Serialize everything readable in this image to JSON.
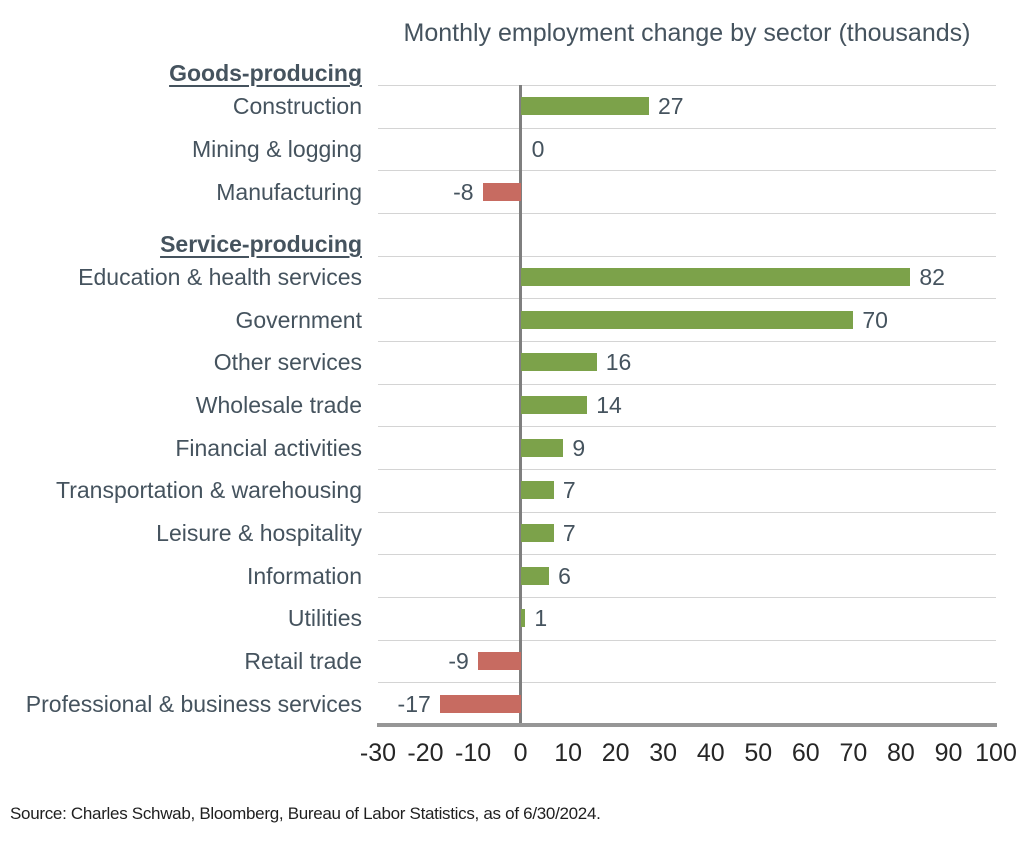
{
  "source_note": "Source: Charles Schwab, Bloomberg, Bureau of Labor Statistics, as of 6/30/2024.",
  "colors": {
    "positive_bar": "#7CA24A",
    "negative_bar": "#C76B61",
    "zero_line": "#7F7F7F",
    "axis_line": "#969696",
    "gridline": "#D4D4D4",
    "label_text": "#45535E",
    "tick_text": "#262626"
  },
  "chart_data": {
    "type": "bar",
    "orientation": "horizontal",
    "title": "Monthly employment change by sector (thousands)",
    "xlabel": "",
    "ylabel": "",
    "xlim": [
      -30,
      100
    ],
    "ticks": [
      -30,
      -20,
      -10,
      0,
      10,
      20,
      30,
      40,
      50,
      60,
      70,
      80,
      90,
      100
    ],
    "grid": "row-separators",
    "legend": "none",
    "rows": [
      {
        "type": "header",
        "label": "Goods-producing"
      },
      {
        "type": "bar",
        "label": "Construction",
        "value": 27
      },
      {
        "type": "bar",
        "label": "Mining & logging",
        "value": 0
      },
      {
        "type": "bar",
        "label": "Manufacturing",
        "value": -8
      },
      {
        "type": "header",
        "label": "Service-producing"
      },
      {
        "type": "bar",
        "label": "Education & health services",
        "value": 82
      },
      {
        "type": "bar",
        "label": "Government",
        "value": 70
      },
      {
        "type": "bar",
        "label": "Other services",
        "value": 16
      },
      {
        "type": "bar",
        "label": "Wholesale trade",
        "value": 14
      },
      {
        "type": "bar",
        "label": "Financial activities",
        "value": 9
      },
      {
        "type": "bar",
        "label": "Transportation & warehousing",
        "value": 7
      },
      {
        "type": "bar",
        "label": "Leisure & hospitality",
        "value": 7
      },
      {
        "type": "bar",
        "label": "Information",
        "value": 6
      },
      {
        "type": "bar",
        "label": "Utilities",
        "value": 1
      },
      {
        "type": "bar",
        "label": "Retail trade",
        "value": -9
      },
      {
        "type": "bar",
        "label": "Professional & business services",
        "value": -17
      }
    ]
  }
}
